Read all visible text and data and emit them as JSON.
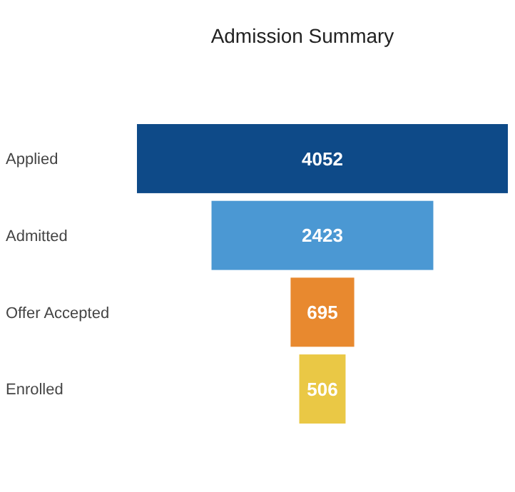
{
  "chart_data": {
    "type": "other",
    "title": "Admission Summary",
    "categories": [
      "Applied",
      "Admitted",
      "Offer Accepted",
      "Enrolled"
    ],
    "values": [
      4052,
      2423,
      695,
      506
    ],
    "colors": [
      "#0e4a88",
      "#4b98d3",
      "#e8892f",
      "#eac845"
    ],
    "data_labels": true
  }
}
